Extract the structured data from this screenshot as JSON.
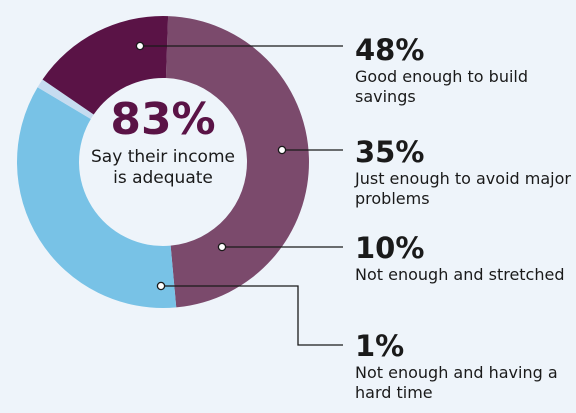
{
  "chart_data": {
    "type": "pie",
    "center": {
      "value": "83%",
      "text": "Say their income is adequate"
    },
    "slices": [
      {
        "value": 48,
        "label": "48%",
        "description": "Good enough to build savings",
        "color": "#7b4a6c"
      },
      {
        "value": 35,
        "label": "35%",
        "description": "Just enough to avoid major problems",
        "color": "#7cc3e6"
      },
      {
        "value": 10,
        "label": "10%",
        "description": "Not enough and stretched",
        "color": "#b8d8ee"
      },
      {
        "value": 1,
        "label": "1%",
        "description": "Not enough and having a hard time",
        "color": "#5a1346"
      }
    ],
    "slice_order_note": ""
  }
}
